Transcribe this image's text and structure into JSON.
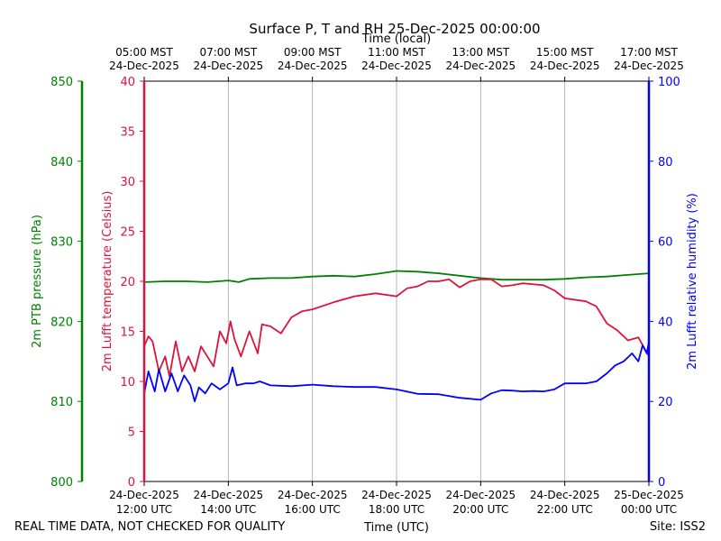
{
  "chart_data": {
    "type": "line",
    "title": "Surface P, T and RH 25-Dec-2025 00:00:00",
    "xlabel_top": "Time (local)",
    "xlabel_bottom": "Time (UTC)",
    "xlim_utc_hours": [
      12,
      24
    ],
    "x_ticks": [
      {
        "hour": 12,
        "utc_date": "24-Dec-2025",
        "utc_time": "12:00 UTC",
        "local_time": "05:00 MST",
        "local_date": "24-Dec-2025"
      },
      {
        "hour": 14,
        "utc_date": "24-Dec-2025",
        "utc_time": "14:00 UTC",
        "local_time": "07:00 MST",
        "local_date": "24-Dec-2025"
      },
      {
        "hour": 16,
        "utc_date": "24-Dec-2025",
        "utc_time": "16:00 UTC",
        "local_time": "09:00 MST",
        "local_date": "24-Dec-2025"
      },
      {
        "hour": 18,
        "utc_date": "24-Dec-2025",
        "utc_time": "18:00 UTC",
        "local_time": "11:00 MST",
        "local_date": "24-Dec-2025"
      },
      {
        "hour": 20,
        "utc_date": "24-Dec-2025",
        "utc_time": "20:00 UTC",
        "local_time": "13:00 MST",
        "local_date": "24-Dec-2025"
      },
      {
        "hour": 22,
        "utc_date": "24-Dec-2025",
        "utc_time": "22:00 UTC",
        "local_time": "15:00 MST",
        "local_date": "24-Dec-2025"
      },
      {
        "hour": 24,
        "utc_date": "25-Dec-2025",
        "utc_time": "00:00 UTC",
        "local_time": "17:00 MST",
        "local_date": "24-Dec-2025"
      }
    ],
    "axes": {
      "pressure": {
        "label": "2m PTB pressure (hPa)",
        "ylim": [
          800,
          850
        ],
        "ticks": [
          800,
          810,
          820,
          830,
          840,
          850
        ],
        "color": "#008000"
      },
      "temperature": {
        "label": "2m Lufft temperature (Celsius)",
        "ylim": [
          0,
          40
        ],
        "ticks": [
          0,
          5,
          10,
          15,
          20,
          25,
          30,
          35,
          40
        ],
        "color": "#dc143c"
      },
      "humidity": {
        "label": "2m Lufft relative humidity (%)",
        "ylim": [
          0,
          100
        ],
        "ticks": [
          0,
          20,
          40,
          60,
          80,
          100
        ],
        "color": "#0000ff"
      }
    },
    "grid": true,
    "series": [
      {
        "name": "2m PTB pressure",
        "axis": "pressure",
        "color": "#008000",
        "x": [
          12.0,
          12.5,
          13.0,
          13.5,
          14.0,
          14.25,
          14.5,
          15.0,
          15.5,
          16.0,
          16.5,
          17.0,
          17.5,
          18.0,
          18.5,
          19.0,
          19.5,
          20.0,
          20.5,
          21.0,
          21.5,
          22.0,
          22.5,
          23.0,
          23.5,
          24.0
        ],
        "values": [
          824.9,
          825.0,
          825.0,
          824.9,
          825.1,
          824.9,
          825.3,
          825.4,
          825.4,
          825.6,
          825.7,
          825.6,
          825.9,
          826.3,
          826.2,
          826.0,
          825.7,
          825.4,
          825.2,
          825.2,
          825.2,
          825.3,
          825.5,
          825.6,
          825.8,
          826.0
        ]
      },
      {
        "name": "2m Lufft temperature",
        "axis": "temperature",
        "color": "#dc143c",
        "x": [
          12.0,
          12.1,
          12.2,
          12.35,
          12.5,
          12.6,
          12.75,
          12.9,
          13.05,
          13.2,
          13.35,
          13.5,
          13.65,
          13.8,
          13.95,
          14.05,
          14.15,
          14.3,
          14.5,
          14.7,
          14.8,
          15.0,
          15.25,
          15.5,
          15.75,
          16.0,
          16.5,
          17.0,
          17.5,
          18.0,
          18.25,
          18.5,
          18.75,
          19.0,
          19.25,
          19.5,
          19.75,
          20.0,
          20.25,
          20.5,
          20.75,
          21.0,
          21.5,
          21.75,
          22.0,
          22.5,
          22.75,
          23.0,
          23.25,
          23.5,
          23.75,
          24.0
        ],
        "values": [
          13.5,
          14.5,
          14.0,
          11.0,
          12.5,
          10.5,
          14.0,
          11.0,
          12.5,
          11.0,
          13.5,
          12.5,
          11.5,
          15.0,
          13.8,
          16.0,
          14.2,
          12.5,
          15.0,
          12.8,
          15.7,
          15.5,
          14.8,
          16.4,
          17.0,
          17.2,
          17.9,
          18.5,
          18.8,
          18.5,
          19.3,
          19.5,
          20.0,
          20.0,
          20.2,
          19.4,
          20.0,
          20.2,
          20.2,
          19.5,
          19.6,
          19.8,
          19.6,
          19.1,
          18.3,
          18.0,
          17.5,
          15.8,
          15.1,
          14.1,
          14.4,
          12.5
        ]
      },
      {
        "name": "2m Lufft relative humidity",
        "axis": "humidity",
        "color": "#0000ff",
        "x": [
          12.0,
          12.1,
          12.25,
          12.35,
          12.5,
          12.65,
          12.8,
          12.95,
          13.1,
          13.2,
          13.3,
          13.45,
          13.6,
          13.8,
          14.0,
          14.1,
          14.2,
          14.4,
          14.6,
          14.75,
          15.0,
          15.5,
          16.0,
          16.5,
          17.0,
          17.5,
          18.0,
          18.5,
          19.0,
          19.5,
          20.0,
          20.25,
          20.5,
          20.75,
          21.0,
          21.25,
          21.5,
          21.75,
          22.0,
          22.5,
          22.75,
          23.0,
          23.2,
          23.4,
          23.6,
          23.75,
          23.85,
          23.95,
          24.0
        ],
        "values": [
          22.0,
          27.5,
          22.5,
          28.0,
          22.5,
          27.0,
          22.5,
          26.5,
          24.0,
          20.0,
          23.5,
          22.0,
          24.5,
          23.0,
          24.5,
          28.5,
          24.0,
          24.5,
          24.5,
          25.0,
          24.0,
          23.8,
          24.2,
          23.8,
          23.6,
          23.6,
          23.0,
          21.9,
          21.8,
          20.9,
          20.4,
          22.0,
          22.8,
          22.7,
          22.5,
          22.6,
          22.5,
          23.0,
          24.5,
          24.5,
          25.0,
          27.0,
          29.0,
          30.0,
          32.0,
          30.0,
          34.0,
          32.0,
          35.0
        ]
      }
    ],
    "footer_left": "REAL TIME DATA, NOT CHECKED FOR QUALITY",
    "footer_right": "Site: ISS2"
  }
}
